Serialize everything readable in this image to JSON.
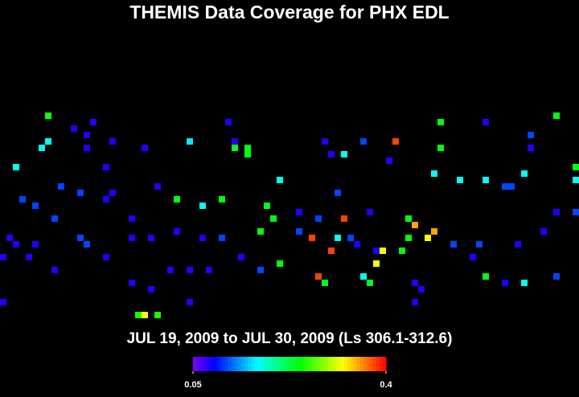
{
  "chart_data": {
    "type": "heatmap",
    "title": "THEMIS Data Coverage for PHX EDL",
    "subtitle": "JUL 19, 2009 to JUL 30, 2009 (Ls 306.1-312.6)",
    "colorbar": {
      "range": [
        0.05,
        0.4
      ],
      "ticks": [
        0.05,
        0.4
      ]
    },
    "x": [
      7,
      11,
      14,
      6,
      7,
      2,
      13,
      13,
      17,
      16,
      22,
      29,
      35,
      36,
      36,
      38,
      38,
      50,
      51,
      53,
      56,
      61,
      68,
      68,
      75,
      82,
      82,
      86,
      89,
      89,
      81,
      78,
      79,
      71,
      75,
      67,
      60,
      3,
      5,
      9,
      12,
      16,
      17,
      24,
      27,
      31,
      34,
      41,
      43,
      46,
      49,
      52,
      53,
      57,
      63,
      64,
      66,
      67,
      63,
      62,
      1,
      2,
      5,
      8,
      12,
      13,
      20,
      20,
      23,
      27,
      31,
      34,
      40,
      42,
      46,
      48,
      51,
      52,
      54,
      55,
      59,
      58,
      70,
      74,
      73,
      80,
      84,
      86,
      89,
      0,
      4,
      8,
      16,
      26,
      29,
      37,
      40,
      43,
      49,
      50,
      57,
      56,
      64,
      65,
      64,
      75,
      78,
      81,
      86,
      20,
      23,
      29,
      0,
      21,
      22,
      24,
      58,
      32
    ],
    "y": [
      0,
      2,
      1,
      5,
      4,
      8,
      3,
      5,
      4,
      8,
      5,
      4,
      1,
      4,
      5,
      5,
      6,
      4,
      6,
      6,
      4,
      4,
      1,
      5,
      1,
      3,
      5,
      0,
      8,
      10,
      9,
      11,
      11,
      10,
      10,
      9,
      7,
      13,
      14,
      11,
      12,
      13,
      12,
      11,
      13,
      14,
      13,
      14,
      10,
      15,
      16,
      12,
      16,
      15,
      16,
      17,
      19,
      18,
      19,
      21,
      19,
      20,
      20,
      16,
      19,
      20,
      19,
      16,
      19,
      18,
      19,
      19,
      18,
      16,
      18,
      19,
      21,
      19,
      19,
      20,
      21,
      23,
      20,
      20,
      22,
      20,
      18,
      15,
      15,
      22,
      22,
      24,
      22,
      24,
      24,
      22,
      24,
      23,
      25,
      26,
      26,
      25,
      26,
      27,
      29,
      25,
      26,
      26,
      25,
      26,
      27,
      29,
      29,
      31,
      31,
      31,
      21,
      24
    ],
    "values": [
      0.25,
      0.08,
      0.08,
      0.17,
      0.17,
      0.17,
      0.08,
      0.08,
      0.08,
      0.08,
      0.08,
      0.16,
      0.08,
      0.08,
      0.24,
      0.24,
      0.24,
      0.08,
      0.08,
      0.17,
      0.11,
      0.38,
      0.24,
      0.24,
      0.08,
      0.11,
      0.08,
      0.24,
      0.24,
      0.17,
      0.17,
      0.11,
      0.11,
      0.17,
      0.17,
      0.17,
      0.08,
      0.11,
      0.11,
      0.11,
      0.11,
      0.08,
      0.08,
      0.08,
      0.24,
      0.17,
      0.24,
      0.24,
      0.17,
      0.08,
      0.11,
      0.11,
      0.38,
      0.08,
      0.24,
      0.35,
      0.32,
      0.35,
      0.24,
      0.24,
      0.08,
      0.08,
      0.08,
      0.11,
      0.11,
      0.11,
      0.08,
      0.08,
      0.08,
      0.08,
      0.08,
      0.11,
      0.24,
      0.24,
      0.11,
      0.38,
      0.38,
      0.17,
      0.11,
      0.08,
      0.32,
      0.32,
      0.11,
      0.11,
      0.08,
      0.08,
      0.08,
      0.08,
      0.11,
      0.08,
      0.08,
      0.08,
      0.08,
      0.08,
      0.08,
      0.08,
      0.11,
      0.24,
      0.38,
      0.24,
      0.24,
      0.17,
      0.08,
      0.08,
      0.08,
      0.24,
      0.08,
      0.17,
      0.11,
      0.08,
      0.08,
      0.08,
      0.08,
      0.25,
      0.32,
      0.25,
      0.08,
      0.08
    ]
  }
}
